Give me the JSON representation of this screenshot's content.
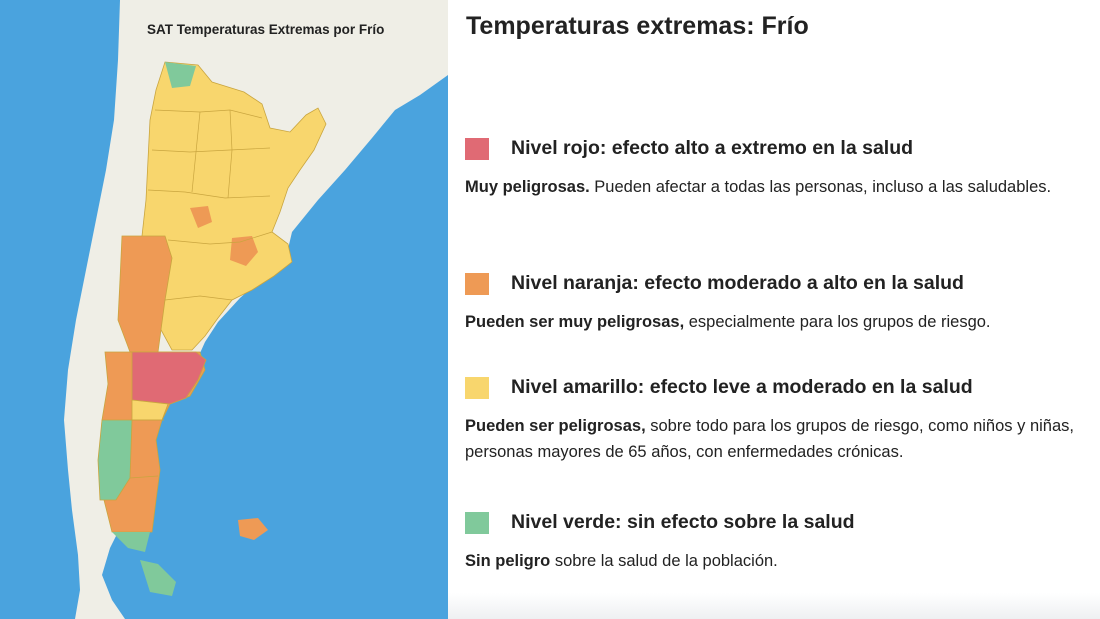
{
  "map": {
    "title": "SAT Temperaturas Extremas por Frío",
    "colors": {
      "ocean": "#4aa3de",
      "land": "#efeee6",
      "red": "#e06a74",
      "orange": "#ee9a55",
      "yellow": "#f8d66d",
      "green": "#80c99b",
      "border": "#c9a53f"
    }
  },
  "panel": {
    "heading": "Temperaturas extremas: Frío",
    "levels": [
      {
        "color": "#e06a74",
        "title": "Nivel rojo: efecto alto a extremo en la salud",
        "desc_bold": "Muy peligrosas.",
        "desc_rest": " Pueden afectar a todas las personas, incluso a las saludables."
      },
      {
        "color": "#ee9a55",
        "title": "Nivel naranja: efecto moderado a alto en la salud",
        "desc_bold": "Pueden ser muy peligrosas,",
        "desc_rest": " especialmente para los grupos de riesgo."
      },
      {
        "color": "#f8d66d",
        "title": "Nivel amarillo: efecto leve a moderado en la salud",
        "desc_bold": "Pueden ser peligrosas,",
        "desc_rest": " sobre todo para los grupos de riesgo, como niños y niñas, personas mayores de 65 años, con enfermedades crónicas."
      },
      {
        "color": "#80c99b",
        "title": "Nivel verde: sin efecto sobre la salud",
        "desc_bold": "Sin peligro",
        "desc_rest": " sobre la salud de la población."
      }
    ]
  }
}
